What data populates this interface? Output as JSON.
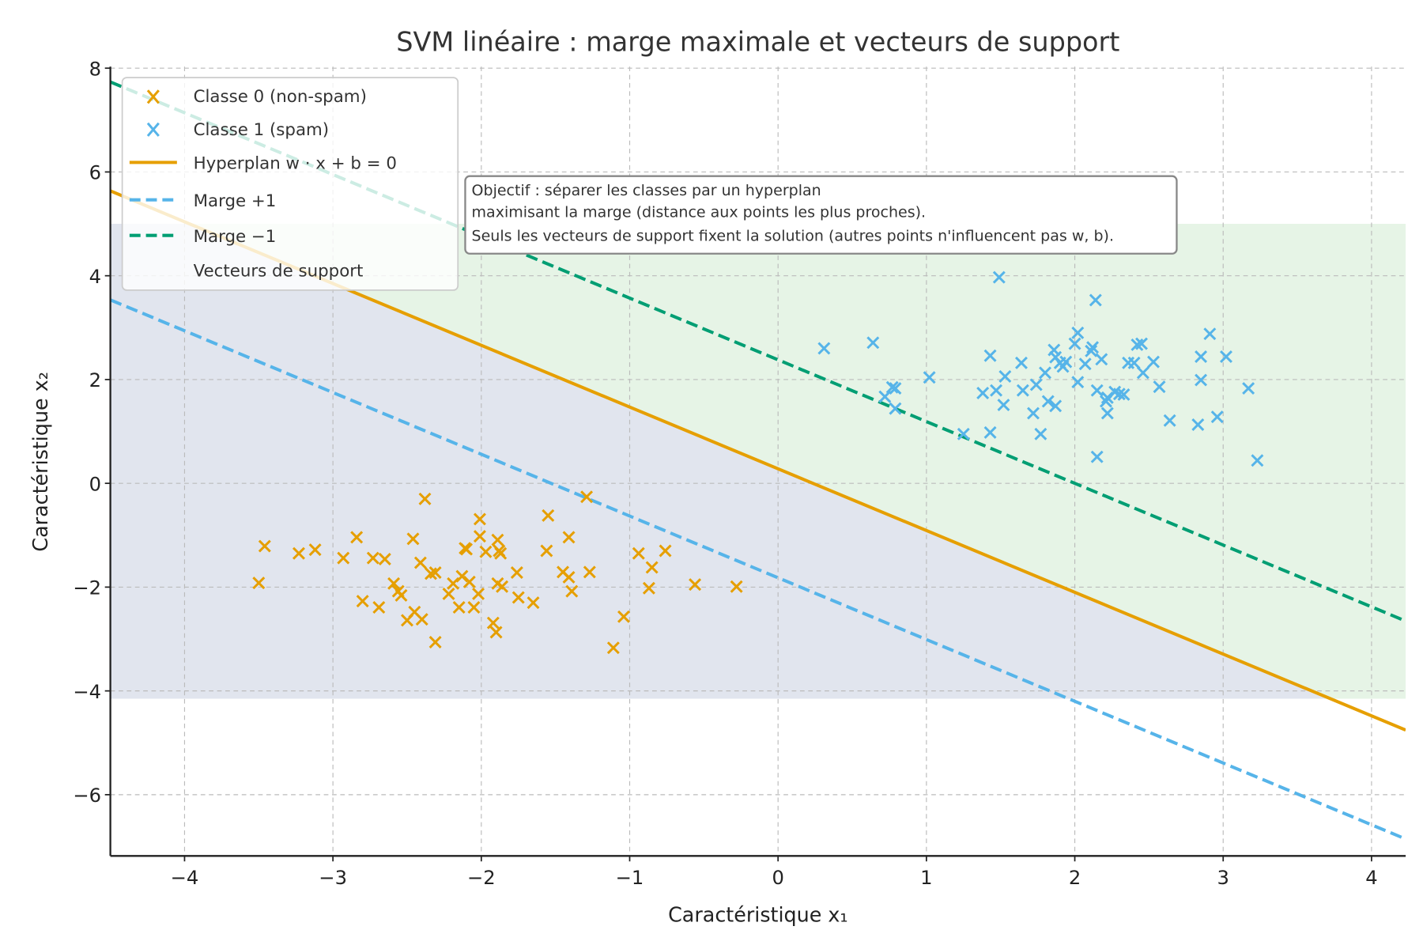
{
  "chart_data": {
    "type": "scatter",
    "title": "SVM linéaire : marge maximale et vecteurs de support",
    "xlabel": "Caractéristique x₁",
    "ylabel": "Caractéristique x₂",
    "xlim": [
      -4.5,
      4.23
    ],
    "ylim": [
      -7.18,
      8.03
    ],
    "xticks": [
      -4,
      -3,
      -2,
      -1,
      0,
      1,
      2,
      3,
      4
    ],
    "yticks": [
      -6,
      -4,
      -2,
      0,
      2,
      4,
      6,
      8
    ],
    "xtick_labels": [
      "−4",
      "−3",
      "−2",
      "−1",
      "0",
      "1",
      "2",
      "3",
      "4"
    ],
    "ytick_labels": [
      "−6",
      "−4",
      "−2",
      "0",
      "2",
      "4",
      "6",
      "8"
    ],
    "grid": true,
    "legend_position": "top-left",
    "colors": {
      "class0": "#E69F00",
      "class1": "#56B4E9",
      "hyperplane": "#E69F00",
      "margin_plus": "#56B4E9",
      "margin_minus": "#009E73",
      "region0": "#E1E5EE",
      "region1": "#E6F4E6"
    },
    "decision_regions": {
      "y_range": [
        -4.15,
        5.0
      ]
    },
    "lines": [
      {
        "name": "Hyperplan  w · x + b = 0",
        "slope": -1.19,
        "intercept": 0.28,
        "style": "solid",
        "color": "#E69F00"
      },
      {
        "name": "Marge +1",
        "slope": -1.19,
        "intercept": -1.82,
        "style": "dashed",
        "color": "#56B4E9"
      },
      {
        "name": "Marge −1",
        "slope": -1.19,
        "intercept": 2.38,
        "style": "dashed",
        "color": "#009E73"
      }
    ],
    "series": [
      {
        "name": "Classe 0 (non-spam)",
        "marker": "x",
        "color": "#E69F00",
        "points": [
          [
            -3.5,
            -1.92
          ],
          [
            -3.46,
            -1.21
          ],
          [
            -3.23,
            -1.35
          ],
          [
            -3.12,
            -1.28
          ],
          [
            -2.93,
            -1.44
          ],
          [
            -2.84,
            -1.04
          ],
          [
            -2.8,
            -2.27
          ],
          [
            -2.73,
            -1.44
          ],
          [
            -2.69,
            -2.39
          ],
          [
            -2.65,
            -1.46
          ],
          [
            -2.59,
            -1.93
          ],
          [
            -2.56,
            -2.08
          ],
          [
            -2.54,
            -2.16
          ],
          [
            -2.5,
            -2.64
          ],
          [
            -2.46,
            -1.07
          ],
          [
            -2.45,
            -2.48
          ],
          [
            -2.41,
            -1.53
          ],
          [
            -2.4,
            -2.62
          ],
          [
            -2.38,
            -0.3
          ],
          [
            -2.34,
            -1.74
          ],
          [
            -2.31,
            -3.06
          ],
          [
            -2.31,
            -1.72
          ],
          [
            -2.22,
            -2.13
          ],
          [
            -2.19,
            -1.93
          ],
          [
            -2.15,
            -2.39
          ],
          [
            -2.13,
            -1.79
          ],
          [
            -2.11,
            -1.25
          ],
          [
            -2.1,
            -1.27
          ],
          [
            -2.08,
            -1.9
          ],
          [
            -2.05,
            -2.39
          ],
          [
            -2.02,
            -2.13
          ],
          [
            -2.01,
            -0.69
          ],
          [
            -2.01,
            -1.02
          ],
          [
            -1.97,
            -1.32
          ],
          [
            -1.92,
            -2.69
          ],
          [
            -1.9,
            -2.87
          ],
          [
            -1.89,
            -1.09
          ],
          [
            -1.89,
            -1.93
          ],
          [
            -1.88,
            -1.3
          ],
          [
            -1.87,
            -1.35
          ],
          [
            -1.86,
            -1.99
          ],
          [
            -1.76,
            -1.72
          ],
          [
            -1.75,
            -2.2
          ],
          [
            -1.65,
            -2.3
          ],
          [
            -1.56,
            -1.3
          ],
          [
            -1.55,
            -0.62
          ],
          [
            -1.45,
            -1.71
          ],
          [
            -1.41,
            -1.04
          ],
          [
            -1.41,
            -1.81
          ],
          [
            -1.39,
            -2.08
          ],
          [
            -1.29,
            -0.26
          ],
          [
            -1.27,
            -1.71
          ],
          [
            -1.11,
            -3.17
          ],
          [
            -1.04,
            -2.57
          ],
          [
            -0.94,
            -1.35
          ],
          [
            -0.87,
            -2.02
          ],
          [
            -0.85,
            -1.62
          ],
          [
            -0.76,
            -1.3
          ],
          [
            -0.56,
            -1.95
          ],
          [
            -0.28,
            -1.99
          ]
        ]
      },
      {
        "name": "Classe 1 (spam)",
        "marker": "x",
        "color": "#56B4E9",
        "points": [
          [
            0.31,
            2.6
          ],
          [
            0.64,
            2.71
          ],
          [
            0.72,
            1.67
          ],
          [
            0.77,
            1.85
          ],
          [
            0.79,
            1.44
          ],
          [
            0.79,
            1.83
          ],
          [
            1.02,
            2.04
          ],
          [
            1.25,
            0.95
          ],
          [
            1.43,
            2.46
          ],
          [
            1.43,
            0.98
          ],
          [
            1.38,
            1.74
          ],
          [
            1.49,
            3.97
          ],
          [
            1.47,
            1.79
          ],
          [
            1.52,
            1.51
          ],
          [
            1.53,
            2.06
          ],
          [
            1.64,
            2.32
          ],
          [
            1.65,
            1.79
          ],
          [
            1.72,
            1.35
          ],
          [
            1.74,
            1.9
          ],
          [
            1.77,
            0.95
          ],
          [
            1.8,
            2.13
          ],
          [
            1.82,
            1.58
          ],
          [
            1.86,
            2.57
          ],
          [
            1.87,
            2.43
          ],
          [
            1.87,
            1.49
          ],
          [
            1.9,
            2.32
          ],
          [
            1.92,
            2.25
          ],
          [
            1.94,
            2.34
          ],
          [
            2.0,
            2.69
          ],
          [
            2.02,
            2.9
          ],
          [
            2.02,
            1.95
          ],
          [
            2.07,
            2.3
          ],
          [
            2.11,
            2.55
          ],
          [
            2.12,
            2.62
          ],
          [
            2.14,
            3.53
          ],
          [
            2.15,
            1.79
          ],
          [
            2.15,
            0.51
          ],
          [
            2.18,
            2.39
          ],
          [
            2.21,
            1.58
          ],
          [
            2.22,
            1.35
          ],
          [
            2.22,
            1.65
          ],
          [
            2.27,
            1.76
          ],
          [
            2.3,
            1.72
          ],
          [
            2.33,
            1.71
          ],
          [
            2.36,
            2.32
          ],
          [
            2.4,
            2.32
          ],
          [
            2.42,
            2.67
          ],
          [
            2.45,
            2.69
          ],
          [
            2.46,
            2.13
          ],
          [
            2.53,
            2.34
          ],
          [
            2.57,
            1.86
          ],
          [
            2.64,
            1.21
          ],
          [
            2.83,
            1.13
          ],
          [
            2.85,
            2.44
          ],
          [
            2.85,
            1.99
          ],
          [
            2.91,
            2.88
          ],
          [
            2.96,
            1.28
          ],
          [
            3.02,
            2.44
          ],
          [
            3.17,
            1.83
          ],
          [
            3.23,
            0.44
          ]
        ]
      }
    ],
    "legend": [
      "Classe 0 (non-spam)",
      "Classe 1 (spam)",
      "Hyperplan  w · x + b = 0",
      "Marge +1",
      "Marge −1",
      "Vecteurs de support"
    ],
    "annotation": [
      "Objectif : séparer les classes par un hyperplan",
      "maximisant la marge (distance aux points les plus proches).",
      "Seuls les vecteurs de support fixent la solution (autres points n'influencent pas w, b)."
    ]
  }
}
